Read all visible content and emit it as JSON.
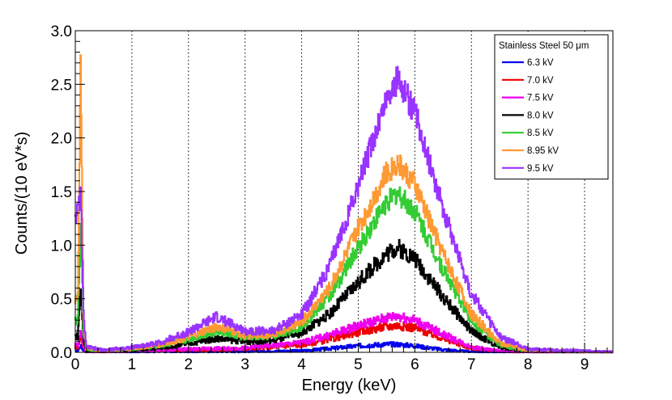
{
  "chart_data": {
    "type": "line",
    "title": "",
    "xlabel": "Energy (keV)",
    "ylabel": "Counts/(10 eV*s)",
    "xlim": [
      0,
      9.5
    ],
    "ylim": [
      0,
      3.0
    ],
    "x_ticks": [
      0,
      1,
      2,
      3,
      4,
      5,
      6,
      7,
      8,
      9
    ],
    "x_tick_labels": [
      "0",
      "1",
      "2",
      "3",
      "4",
      "5",
      "6",
      "7",
      "8",
      "9"
    ],
    "y_ticks": [
      0,
      0.5,
      1.0,
      1.5,
      2.0,
      2.5,
      3.0
    ],
    "y_tick_labels": [
      "0.0",
      "0.5",
      "1.0",
      "1.5",
      "2.0",
      "2.5",
      "3.0"
    ],
    "grid": "vertical dotted",
    "legend": {
      "title": "Stainless Steel 50 μm",
      "placement": "top-right"
    },
    "series": [
      {
        "name": "6.3 kV",
        "color": "#0000ee",
        "x": [
          0.05,
          0.1,
          0.15,
          0.2,
          0.5,
          1.0,
          2.0,
          3.0,
          4.0,
          4.5,
          5.0,
          5.5,
          5.7,
          6.0,
          6.5,
          7.0,
          7.5,
          8.0,
          9.5
        ],
        "y": [
          0.02,
          0.06,
          0.02,
          0.005,
          0.003,
          0.004,
          0.006,
          0.008,
          0.015,
          0.035,
          0.06,
          0.075,
          0.075,
          0.06,
          0.025,
          0.006,
          0.002,
          0.001,
          0.001
        ]
      },
      {
        "name": "7.0 kV",
        "color": "#ee0000",
        "x": [
          0.05,
          0.1,
          0.15,
          0.2,
          0.5,
          1.0,
          2.0,
          3.0,
          4.0,
          4.5,
          5.0,
          5.5,
          5.7,
          6.0,
          6.5,
          7.0,
          7.5,
          8.0,
          9.5
        ],
        "y": [
          0.05,
          0.15,
          0.05,
          0.01,
          0.005,
          0.01,
          0.02,
          0.03,
          0.07,
          0.12,
          0.19,
          0.24,
          0.25,
          0.23,
          0.13,
          0.04,
          0.01,
          0.003,
          0.001
        ]
      },
      {
        "name": "7.5 kV",
        "color": "#ee00ee",
        "x": [
          0.05,
          0.1,
          0.15,
          0.2,
          0.5,
          1.0,
          2.0,
          3.0,
          4.0,
          4.5,
          5.0,
          5.5,
          5.7,
          6.0,
          6.5,
          7.0,
          7.5,
          8.0,
          9.5
        ],
        "y": [
          0.07,
          0.2,
          0.06,
          0.01,
          0.006,
          0.012,
          0.03,
          0.04,
          0.09,
          0.16,
          0.25,
          0.32,
          0.34,
          0.3,
          0.17,
          0.05,
          0.012,
          0.003,
          0.001
        ]
      },
      {
        "name": "8.0 kV",
        "color": "#000000",
        "x": [
          0.05,
          0.1,
          0.15,
          0.2,
          0.5,
          1.0,
          1.5,
          2.0,
          2.5,
          3.0,
          3.5,
          4.0,
          4.5,
          5.0,
          5.5,
          5.7,
          6.0,
          6.5,
          7.0,
          7.5,
          8.0,
          9.5
        ],
        "y": [
          0.15,
          0.6,
          0.12,
          0.02,
          0.01,
          0.02,
          0.04,
          0.08,
          0.13,
          0.1,
          0.11,
          0.18,
          0.36,
          0.65,
          0.92,
          0.98,
          0.88,
          0.52,
          0.2,
          0.05,
          0.01,
          0.002
        ]
      },
      {
        "name": "8.5 kV",
        "color": "#33cc33",
        "x": [
          0.05,
          0.1,
          0.15,
          0.2,
          0.5,
          1.0,
          1.5,
          2.0,
          2.5,
          3.0,
          3.5,
          4.0,
          4.5,
          5.0,
          5.5,
          5.7,
          6.0,
          6.5,
          7.0,
          7.5,
          8.0,
          9.5
        ],
        "y": [
          0.3,
          1.2,
          0.2,
          0.03,
          0.012,
          0.03,
          0.06,
          0.12,
          0.2,
          0.14,
          0.15,
          0.24,
          0.52,
          0.97,
          1.4,
          1.48,
          1.32,
          0.78,
          0.3,
          0.07,
          0.015,
          0.003
        ]
      },
      {
        "name": "8.95 kV",
        "color": "#ff9933",
        "x": [
          0.05,
          0.1,
          0.15,
          0.2,
          0.5,
          1.0,
          1.5,
          2.0,
          2.5,
          3.0,
          3.5,
          4.0,
          4.5,
          5.0,
          5.5,
          5.7,
          6.0,
          6.5,
          7.0,
          7.5,
          8.0,
          9.5
        ],
        "y": [
          0.5,
          2.75,
          0.3,
          0.04,
          0.015,
          0.035,
          0.07,
          0.14,
          0.24,
          0.16,
          0.17,
          0.28,
          0.6,
          1.15,
          1.67,
          1.77,
          1.57,
          0.93,
          0.36,
          0.09,
          0.02,
          0.004
        ]
      },
      {
        "name": "9.5 kV",
        "color": "#9933ff",
        "x": [
          0.05,
          0.1,
          0.15,
          0.2,
          0.5,
          1.0,
          1.5,
          2.0,
          2.5,
          3.0,
          3.5,
          4.0,
          4.5,
          5.0,
          5.5,
          5.7,
          6.0,
          6.5,
          7.0,
          7.5,
          8.0,
          9.5
        ],
        "y": [
          1.3,
          1.5,
          0.35,
          0.05,
          0.02,
          0.045,
          0.09,
          0.19,
          0.33,
          0.2,
          0.2,
          0.35,
          0.8,
          1.55,
          2.35,
          2.55,
          2.25,
          1.35,
          0.55,
          0.15,
          0.03,
          0.005
        ]
      }
    ]
  }
}
